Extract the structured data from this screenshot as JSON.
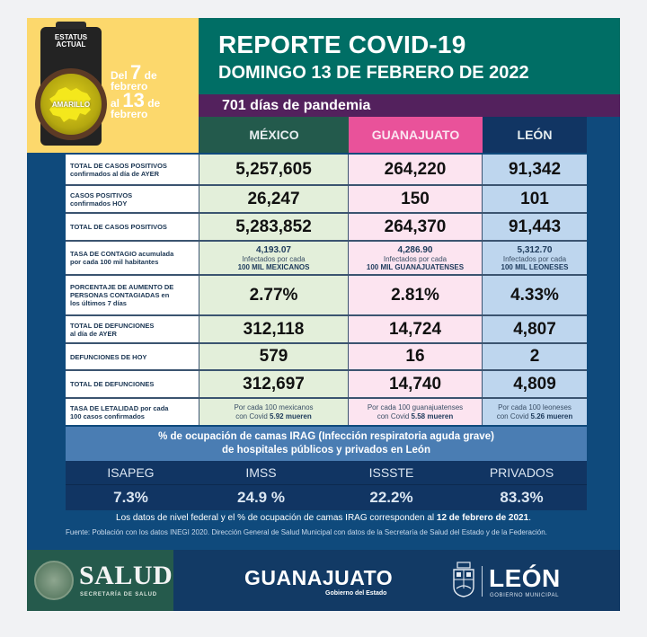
{
  "status": {
    "label": "ESTATUS ACTUAL",
    "level": "AMARILLO",
    "level_color": "#e2d21a",
    "dates": {
      "from_prefix": "Del",
      "from_day": "7",
      "from_suffix": "de",
      "from_month": "febrero",
      "to_prefix": "al",
      "to_day": "13",
      "to_suffix": "de",
      "to_month": "febrero"
    }
  },
  "header": {
    "title": "REPORTE COVID-19",
    "subtitle": "DOMINGO 13 DE FEBRERO DE 2022",
    "pandemic_days": "701 días de pandemia"
  },
  "columns": [
    "MÉXICO",
    "GUANAJUATO",
    "LEÓN"
  ],
  "rows": [
    {
      "label_bold": "TOTAL DE CASOS POSITIVOS",
      "label_rest": "confirmados al día de AYER",
      "values": [
        "5,257,605",
        "264,220",
        "91,342"
      ]
    },
    {
      "label_bold": "CASOS POSITIVOS",
      "label_rest": "confirmados HOY",
      "values": [
        "26,247",
        "150",
        "101"
      ]
    },
    {
      "label_bold": "TOTAL DE CASOS POSITIVOS",
      "label_rest": "",
      "values": [
        "5,283,852",
        "264,370",
        "91,443"
      ]
    },
    {
      "label_bold": "TASA DE CONTAGIO acumulada",
      "label_rest": "por cada 100 mil habitantes",
      "rates": [
        {
          "value": "4,193.07",
          "line2": "Infectados por cada",
          "line3": "100 MIL MEXICANOS"
        },
        {
          "value": "4,286.90",
          "line2": "Infectados por cada",
          "line3": "100 MIL GUANAJUATENSES"
        },
        {
          "value": "5,312.70",
          "line2": "Infectados por cada",
          "line3": "100 MIL LEONESES"
        }
      ]
    },
    {
      "label_bold": "PORCENTAJE DE AUMENTO DE PERSONAS CONTAGIADAS en",
      "label_rest": "los últimos 7 días",
      "values": [
        "2.77%",
        "2.81%",
        "4.33%"
      ]
    },
    {
      "label_bold": "TOTAL DE DEFUNCIONES",
      "label_rest": "al día de AYER",
      "values": [
        "312,118",
        "14,724",
        "4,807"
      ]
    },
    {
      "label_bold": "DEFUNCIONES DE HOY",
      "label_rest": "",
      "values": [
        "579",
        "16",
        "2"
      ]
    },
    {
      "label_bold": "TOTAL DE DEFUNCIONES",
      "label_rest": "",
      "values": [
        "312,697",
        "14,740",
        "4,809"
      ]
    },
    {
      "label_bold": "TASA DE LETALIDAD por cada",
      "label_rest": "100 casos confirmados",
      "lethality": [
        {
          "line1": "Por cada 100 mexicanos",
          "line2_prefix": "con Covid",
          "value": "5.92 mueren"
        },
        {
          "line1": "Por cada 100 guanajuatenses",
          "line2_prefix": "con Covid",
          "value": "5.58 mueren"
        },
        {
          "line1": "Por cada 100 leoneses",
          "line2_prefix": "con Covid",
          "value": "5.26 mueren"
        }
      ]
    }
  ],
  "irag": {
    "title_line1": "% de ocupación de camas IRAG (Infección respiratoria aguda grave)",
    "title_line2": "de  hospitales públicos y privados en León",
    "items": [
      {
        "name": "ISAPEG",
        "value": "7.3%"
      },
      {
        "name": "IMSS",
        "value": "24.9 %"
      },
      {
        "name": "ISSSTE",
        "value": "22.2%"
      },
      {
        "name": "PRIVADOS",
        "value": "83.3%"
      }
    ]
  },
  "notes": {
    "main_prefix": "Los datos de nivel federal y el % de  ocupación de camas IRAG corresponden al",
    "main_date": "12 de febrero de 2021",
    "main_suffix": ".",
    "source": "Fuente: Población con los datos INEGI 2020. Dirección General de Salud Municipal con datos de la Secretaría de Salud del Estado y de la Federación."
  },
  "logos": {
    "salud": "SALUD",
    "salud_sub": "SECRETARÍA DE SALUD",
    "guanajuato": "GUANAJUATO",
    "guanajuato_sub": "Gobierno del Estado",
    "leon": "LEÓN",
    "leon_sub": "GOBIERNO MUNICIPAL"
  },
  "colors": {
    "header_teal": "#006e65",
    "pandemic_purple": "#53215d",
    "mexico": "#235a4c",
    "guanajuato": "#e9529a",
    "leon": "#113563",
    "status_yellow": "#fcd86c"
  }
}
